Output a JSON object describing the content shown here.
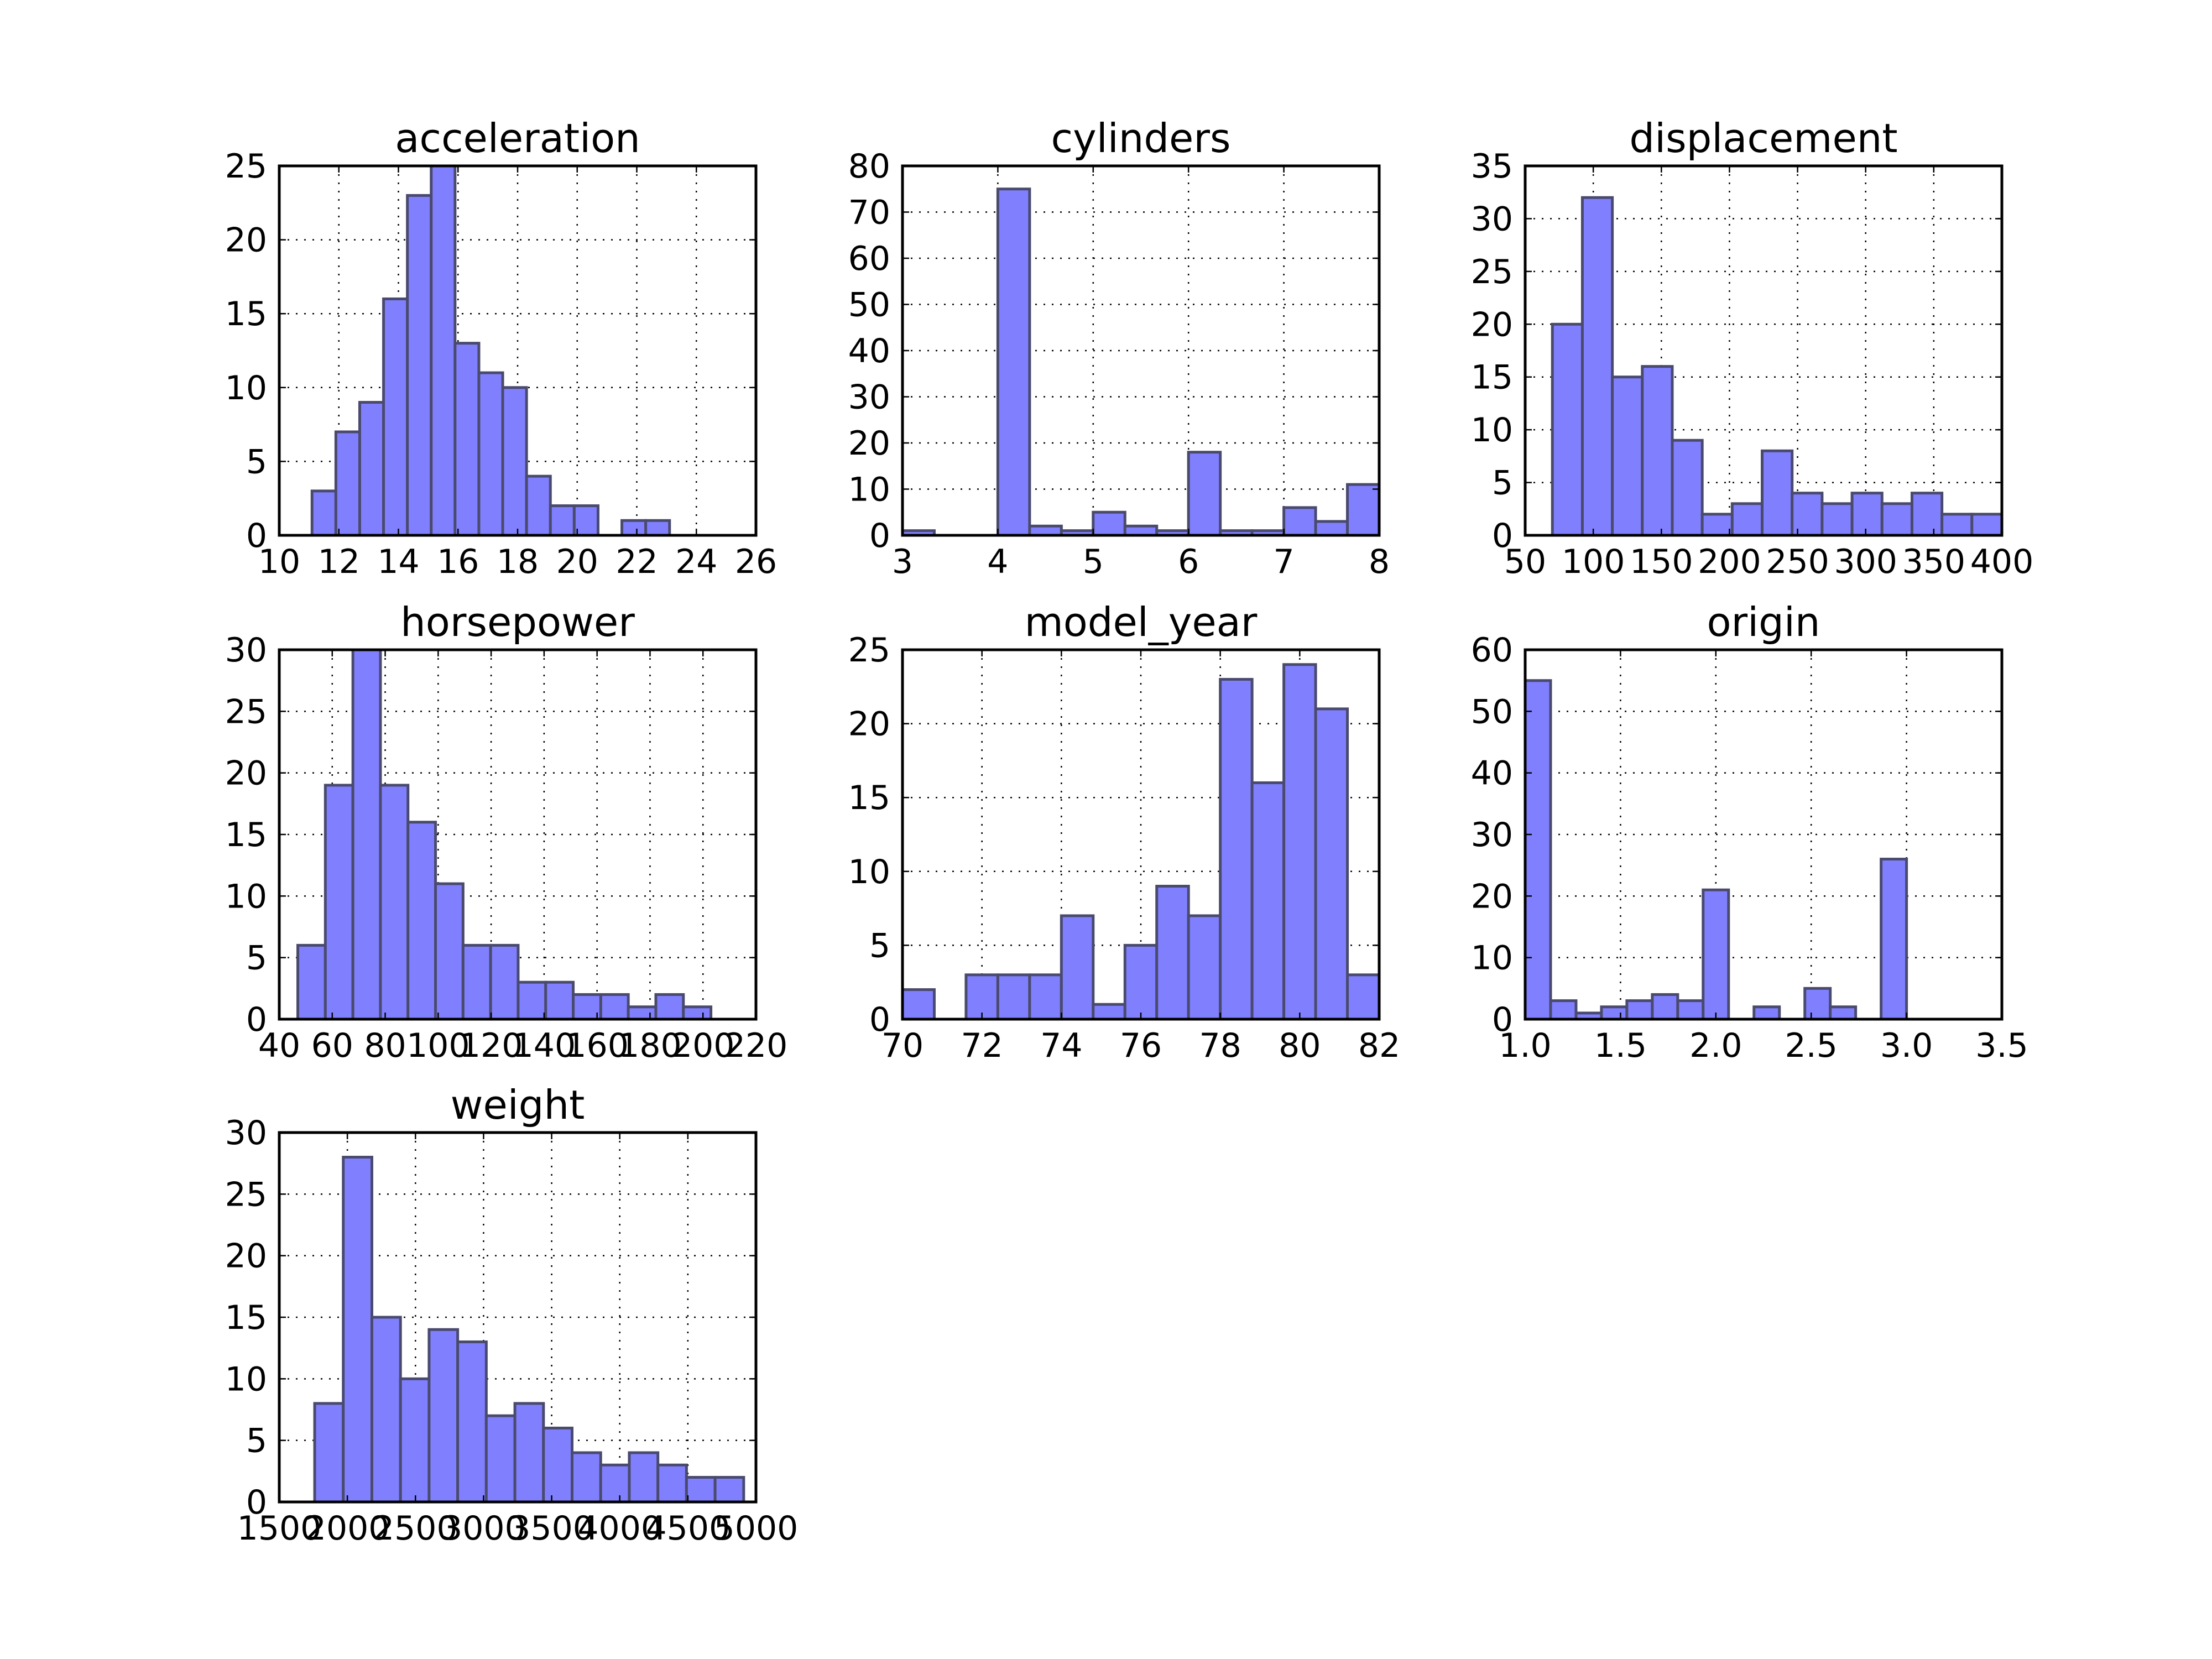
{
  "style": {
    "bar_fill": "#8080ff",
    "bar_edge": "#4a4a6e",
    "background": "#ffffff"
  },
  "chart_data": [
    {
      "type": "bar",
      "title": "acceleration",
      "grid": true,
      "xlim": [
        10,
        26
      ],
      "ylim": [
        0,
        25
      ],
      "xticks": [
        10,
        12,
        14,
        16,
        18,
        20,
        22,
        24,
        26
      ],
      "yticks": [
        0,
        5,
        10,
        15,
        20,
        25
      ],
      "bins": [
        {
          "x0": 11.1,
          "x1": 11.9,
          "count": 3
        },
        {
          "x0": 11.9,
          "x1": 12.7,
          "count": 7
        },
        {
          "x0": 12.7,
          "x1": 13.5,
          "count": 9
        },
        {
          "x0": 13.5,
          "x1": 14.3,
          "count": 16
        },
        {
          "x0": 14.3,
          "x1": 15.1,
          "count": 23
        },
        {
          "x0": 15.1,
          "x1": 15.9,
          "count": 25
        },
        {
          "x0": 15.9,
          "x1": 16.7,
          "count": 13
        },
        {
          "x0": 16.7,
          "x1": 17.5,
          "count": 11
        },
        {
          "x0": 17.5,
          "x1": 18.3,
          "count": 10
        },
        {
          "x0": 18.3,
          "x1": 19.1,
          "count": 4
        },
        {
          "x0": 19.1,
          "x1": 19.9,
          "count": 2
        },
        {
          "x0": 19.9,
          "x1": 20.7,
          "count": 2
        },
        {
          "x0": 20.7,
          "x1": 21.5,
          "count": 0
        },
        {
          "x0": 21.5,
          "x1": 22.3,
          "count": 1
        },
        {
          "x0": 22.3,
          "x1": 23.1,
          "count": 1
        }
      ]
    },
    {
      "type": "bar",
      "title": "cylinders",
      "grid": true,
      "xlim": [
        3,
        8
      ],
      "ylim": [
        0,
        80
      ],
      "xticks": [
        3,
        4,
        5,
        6,
        7,
        8
      ],
      "yticks": [
        0,
        10,
        20,
        30,
        40,
        50,
        60,
        70,
        80
      ],
      "bins": [
        {
          "x0": 3.0,
          "x1": 3.3333,
          "count": 1
        },
        {
          "x0": 3.3333,
          "x1": 3.6667,
          "count": 0
        },
        {
          "x0": 3.6667,
          "x1": 4.0,
          "count": 0
        },
        {
          "x0": 4.0,
          "x1": 4.3333,
          "count": 75
        },
        {
          "x0": 4.3333,
          "x1": 4.6667,
          "count": 2
        },
        {
          "x0": 4.6667,
          "x1": 5.0,
          "count": 1
        },
        {
          "x0": 5.0,
          "x1": 5.3333,
          "count": 5
        },
        {
          "x0": 5.3333,
          "x1": 5.6667,
          "count": 2
        },
        {
          "x0": 5.6667,
          "x1": 6.0,
          "count": 1
        },
        {
          "x0": 6.0,
          "x1": 6.3333,
          "count": 18
        },
        {
          "x0": 6.3333,
          "x1": 6.6667,
          "count": 1
        },
        {
          "x0": 6.6667,
          "x1": 7.0,
          "count": 1
        },
        {
          "x0": 7.0,
          "x1": 7.3333,
          "count": 6
        },
        {
          "x0": 7.3333,
          "x1": 7.6667,
          "count": 3
        },
        {
          "x0": 7.6667,
          "x1": 8.0,
          "count": 11
        }
      ]
    },
    {
      "type": "bar",
      "title": "displacement",
      "grid": true,
      "xlim": [
        50,
        400
      ],
      "ylim": [
        0,
        35
      ],
      "xticks": [
        50,
        100,
        150,
        200,
        250,
        300,
        350,
        400
      ],
      "yticks": [
        0,
        5,
        10,
        15,
        20,
        25,
        30,
        35
      ],
      "bins": [
        {
          "x0": 70,
          "x1": 92,
          "count": 20
        },
        {
          "x0": 92,
          "x1": 114,
          "count": 32
        },
        {
          "x0": 114,
          "x1": 136,
          "count": 15
        },
        {
          "x0": 136,
          "x1": 158,
          "count": 16
        },
        {
          "x0": 158,
          "x1": 180,
          "count": 9
        },
        {
          "x0": 180,
          "x1": 202,
          "count": 2
        },
        {
          "x0": 202,
          "x1": 224,
          "count": 3
        },
        {
          "x0": 224,
          "x1": 246,
          "count": 8
        },
        {
          "x0": 246,
          "x1": 268,
          "count": 4
        },
        {
          "x0": 268,
          "x1": 290,
          "count": 3
        },
        {
          "x0": 290,
          "x1": 312,
          "count": 4
        },
        {
          "x0": 312,
          "x1": 334,
          "count": 3
        },
        {
          "x0": 334,
          "x1": 356,
          "count": 4
        },
        {
          "x0": 356,
          "x1": 378,
          "count": 2
        },
        {
          "x0": 378,
          "x1": 400,
          "count": 2
        }
      ]
    },
    {
      "type": "bar",
      "title": "horsepower",
      "grid": true,
      "xlim": [
        40,
        220
      ],
      "ylim": [
        0,
        30
      ],
      "xticks": [
        40,
        60,
        80,
        100,
        120,
        140,
        160,
        180,
        200,
        220
      ],
      "yticks": [
        0,
        5,
        10,
        15,
        20,
        25,
        30
      ],
      "bins": [
        {
          "x0": 47,
          "x1": 57.4,
          "count": 6
        },
        {
          "x0": 57.4,
          "x1": 67.8,
          "count": 19
        },
        {
          "x0": 67.8,
          "x1": 78.2,
          "count": 30
        },
        {
          "x0": 78.2,
          "x1": 88.6,
          "count": 19
        },
        {
          "x0": 88.6,
          "x1": 99.0,
          "count": 16
        },
        {
          "x0": 99.0,
          "x1": 109.4,
          "count": 11
        },
        {
          "x0": 109.4,
          "x1": 119.8,
          "count": 6
        },
        {
          "x0": 119.8,
          "x1": 130.2,
          "count": 6
        },
        {
          "x0": 130.2,
          "x1": 140.6,
          "count": 3
        },
        {
          "x0": 140.6,
          "x1": 151.0,
          "count": 3
        },
        {
          "x0": 151.0,
          "x1": 161.4,
          "count": 2
        },
        {
          "x0": 161.4,
          "x1": 171.8,
          "count": 2
        },
        {
          "x0": 171.8,
          "x1": 182.2,
          "count": 1
        },
        {
          "x0": 182.2,
          "x1": 192.6,
          "count": 2
        },
        {
          "x0": 192.6,
          "x1": 203.0,
          "count": 1
        }
      ]
    },
    {
      "type": "bar",
      "title": "model_year",
      "grid": true,
      "xlim": [
        70,
        82
      ],
      "ylim": [
        0,
        25
      ],
      "xticks": [
        70,
        72,
        74,
        76,
        78,
        80,
        82
      ],
      "yticks": [
        0,
        5,
        10,
        15,
        20,
        25
      ],
      "bins": [
        {
          "x0": 70.0,
          "x1": 70.8,
          "count": 2
        },
        {
          "x0": 70.8,
          "x1": 71.6,
          "count": 0
        },
        {
          "x0": 71.6,
          "x1": 72.4,
          "count": 3
        },
        {
          "x0": 72.4,
          "x1": 73.2,
          "count": 3
        },
        {
          "x0": 73.2,
          "x1": 74.0,
          "count": 3
        },
        {
          "x0": 74.0,
          "x1": 74.8,
          "count": 7
        },
        {
          "x0": 74.8,
          "x1": 75.6,
          "count": 1
        },
        {
          "x0": 75.6,
          "x1": 76.4,
          "count": 5
        },
        {
          "x0": 76.4,
          "x1": 77.2,
          "count": 9
        },
        {
          "x0": 77.2,
          "x1": 78.0,
          "count": 7
        },
        {
          "x0": 78.0,
          "x1": 78.8,
          "count": 23
        },
        {
          "x0": 78.8,
          "x1": 79.6,
          "count": 16
        },
        {
          "x0": 79.6,
          "x1": 80.4,
          "count": 24
        },
        {
          "x0": 80.4,
          "x1": 81.2,
          "count": 21
        },
        {
          "x0": 81.2,
          "x1": 82.0,
          "count": 3
        }
      ]
    },
    {
      "type": "bar",
      "title": "origin",
      "grid": true,
      "xlim": [
        1.0,
        3.5
      ],
      "ylim": [
        0,
        60
      ],
      "xticks": [
        1.0,
        1.5,
        2.0,
        2.5,
        3.0,
        3.5
      ],
      "xtick_labels": [
        "1.0",
        "1.5",
        "2.0",
        "2.5",
        "3.0",
        "3.5"
      ],
      "yticks": [
        0,
        10,
        20,
        30,
        40,
        50,
        60
      ],
      "bins": [
        {
          "x0": 1.0,
          "x1": 1.1333,
          "count": 55
        },
        {
          "x0": 1.1333,
          "x1": 1.2667,
          "count": 3
        },
        {
          "x0": 1.2667,
          "x1": 1.4,
          "count": 1
        },
        {
          "x0": 1.4,
          "x1": 1.5333,
          "count": 2
        },
        {
          "x0": 1.5333,
          "x1": 1.6667,
          "count": 3
        },
        {
          "x0": 1.6667,
          "x1": 1.8,
          "count": 4
        },
        {
          "x0": 1.8,
          "x1": 1.9333,
          "count": 3
        },
        {
          "x0": 1.9333,
          "x1": 2.0667,
          "count": 21
        },
        {
          "x0": 2.0667,
          "x1": 2.2,
          "count": 0
        },
        {
          "x0": 2.2,
          "x1": 2.3333,
          "count": 2
        },
        {
          "x0": 2.3333,
          "x1": 2.4667,
          "count": 0
        },
        {
          "x0": 2.4667,
          "x1": 2.6,
          "count": 5
        },
        {
          "x0": 2.6,
          "x1": 2.7333,
          "count": 2
        },
        {
          "x0": 2.7333,
          "x1": 2.8667,
          "count": 0
        },
        {
          "x0": 2.8667,
          "x1": 3.0,
          "count": 26
        }
      ]
    },
    {
      "type": "bar",
      "title": "weight",
      "grid": true,
      "xlim": [
        1500,
        5000
      ],
      "ylim": [
        0,
        30
      ],
      "xticks": [
        1500,
        2000,
        2500,
        3000,
        3500,
        4000,
        4500,
        5000
      ],
      "yticks": [
        0,
        5,
        10,
        15,
        20,
        25,
        30
      ],
      "bins": [
        {
          "x0": 1760,
          "x1": 1970,
          "count": 8
        },
        {
          "x0": 1970,
          "x1": 2180,
          "count": 28
        },
        {
          "x0": 2180,
          "x1": 2390,
          "count": 15
        },
        {
          "x0": 2390,
          "x1": 2600,
          "count": 10
        },
        {
          "x0": 2600,
          "x1": 2810,
          "count": 14
        },
        {
          "x0": 2810,
          "x1": 3020,
          "count": 13
        },
        {
          "x0": 3020,
          "x1": 3230,
          "count": 7
        },
        {
          "x0": 3230,
          "x1": 3440,
          "count": 8
        },
        {
          "x0": 3440,
          "x1": 3650,
          "count": 6
        },
        {
          "x0": 3650,
          "x1": 3860,
          "count": 4
        },
        {
          "x0": 3860,
          "x1": 4070,
          "count": 3
        },
        {
          "x0": 4070,
          "x1": 4280,
          "count": 4
        },
        {
          "x0": 4280,
          "x1": 4490,
          "count": 3
        },
        {
          "x0": 4490,
          "x1": 4700,
          "count": 2
        },
        {
          "x0": 4700,
          "x1": 4910,
          "count": 2
        }
      ]
    }
  ]
}
